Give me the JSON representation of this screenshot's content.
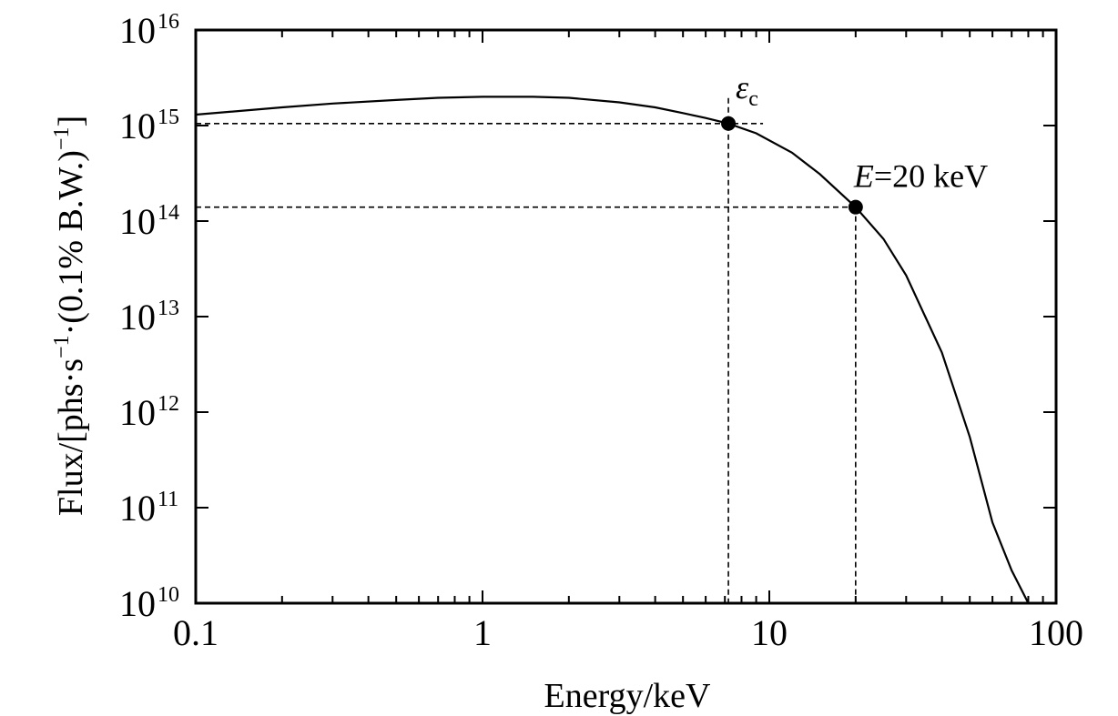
{
  "chart_data": {
    "type": "line",
    "xscale": "log",
    "yscale": "log",
    "xlim": [
      0.1,
      100
    ],
    "ylim": [
      10000000000.0,
      1e+16
    ],
    "xlabel": "Energy/keV",
    "ylabel": {
      "prefix": "Flux/[phs·s",
      "sup1": "−1",
      "middle": "·(0.1% B.W.)",
      "sup2": "−1",
      "suffix": "]"
    },
    "x_ticks": [
      "0.1",
      "1",
      "10",
      "100"
    ],
    "y_ticks": [
      {
        "base": "10",
        "exp": "10"
      },
      {
        "base": "10",
        "exp": "11"
      },
      {
        "base": "10",
        "exp": "12"
      },
      {
        "base": "10",
        "exp": "13"
      },
      {
        "base": "10",
        "exp": "14"
      },
      {
        "base": "10",
        "exp": "15"
      },
      {
        "base": "10",
        "exp": "16"
      }
    ],
    "grid": false,
    "series": [
      {
        "color": "#000000",
        "points": [
          [
            0.1,
            1300000000000000.0
          ],
          [
            0.2,
            1550000000000000.0
          ],
          [
            0.3,
            1700000000000000.0
          ],
          [
            0.5,
            1850000000000000.0
          ],
          [
            0.7,
            1950000000000000.0
          ],
          [
            1.0,
            2000000000000000.0
          ],
          [
            1.5,
            2000000000000000.0
          ],
          [
            2.0,
            1950000000000000.0
          ],
          [
            3.0,
            1750000000000000.0
          ],
          [
            4.0,
            1550000000000000.0
          ],
          [
            5.0,
            1350000000000000.0
          ],
          [
            6.0,
            1200000000000000.0
          ],
          [
            7.2,
            1050000000000000.0
          ],
          [
            9.0,
            830000000000000.0
          ],
          [
            12.0,
            520000000000000.0
          ],
          [
            15.0,
            310000000000000.0
          ],
          [
            20.0,
            140000000000000.0
          ],
          [
            25.0,
            65000000000000.0
          ],
          [
            30.0,
            27000000000000.0
          ],
          [
            40.0,
            4200000000000.0
          ],
          [
            50.0,
            550000000000.0
          ],
          [
            60.0,
            70000000000.0
          ],
          [
            70.0,
            22000000000.0
          ],
          [
            80.0,
            10000000000.0
          ]
        ]
      }
    ],
    "annotations": [
      {
        "id": "ec",
        "label_symbol": "ε",
        "label_sub": "c",
        "x": 7.2,
        "y": 1050000000000000.0
      },
      {
        "id": "e20",
        "label_var": "E",
        "label_rest": "=20 keV",
        "x": 20.0,
        "y": 140000000000000.0
      }
    ]
  }
}
